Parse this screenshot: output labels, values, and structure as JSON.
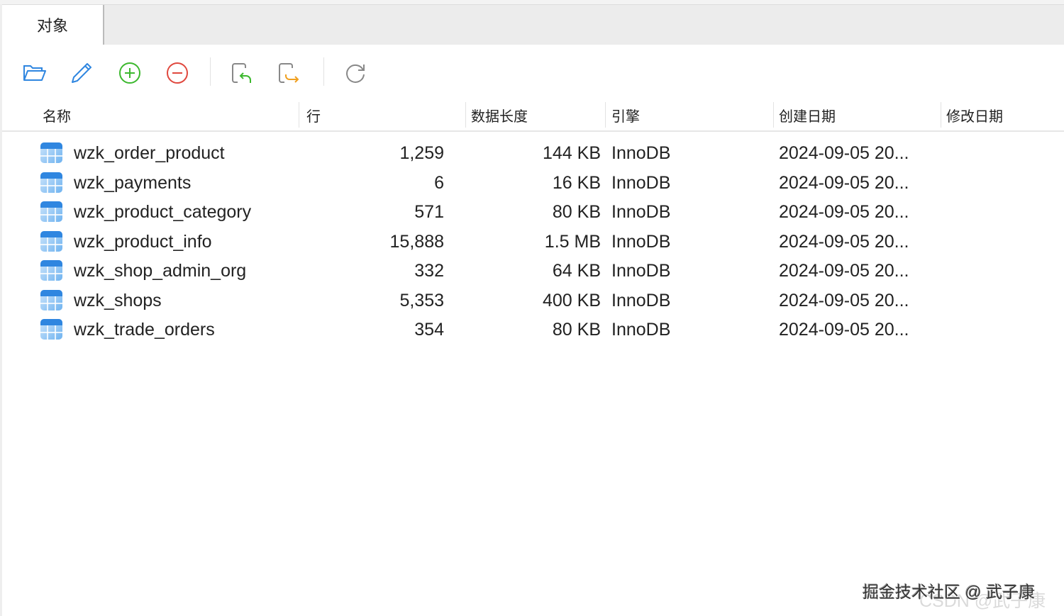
{
  "tab": {
    "label": "对象"
  },
  "toolbar": {
    "buttons": [
      {
        "name": "open-table",
        "icon": "folder-open-icon"
      },
      {
        "name": "design-table",
        "icon": "pencil-icon"
      },
      {
        "name": "new-table",
        "icon": "plus-circle-icon"
      },
      {
        "name": "delete-table",
        "icon": "minus-circle-icon"
      },
      {
        "name": "import",
        "icon": "import-icon"
      },
      {
        "name": "export",
        "icon": "export-icon"
      },
      {
        "name": "refresh",
        "icon": "refresh-icon"
      }
    ],
    "colors": {
      "blue": "#2f86e0",
      "green": "#3cb82e",
      "red": "#e0483e",
      "orange": "#f0a020",
      "gray": "#888888"
    }
  },
  "columns": [
    "名称",
    "行",
    "数据长度",
    "引擎",
    "创建日期",
    "修改日期"
  ],
  "rows": [
    {
      "name": "wzk_order_product",
      "rows": "1,259",
      "size": "144 KB",
      "engine": "InnoDB",
      "created": "2024-09-05 20...",
      "modified": ""
    },
    {
      "name": "wzk_payments",
      "rows": "6",
      "size": "16 KB",
      "engine": "InnoDB",
      "created": "2024-09-05 20...",
      "modified": ""
    },
    {
      "name": "wzk_product_category",
      "rows": "571",
      "size": "80 KB",
      "engine": "InnoDB",
      "created": "2024-09-05 20...",
      "modified": ""
    },
    {
      "name": "wzk_product_info",
      "rows": "15,888",
      "size": "1.5 MB",
      "engine": "InnoDB",
      "created": "2024-09-05 20...",
      "modified": ""
    },
    {
      "name": "wzk_shop_admin_org",
      "rows": "332",
      "size": "64 KB",
      "engine": "InnoDB",
      "created": "2024-09-05 20...",
      "modified": ""
    },
    {
      "name": "wzk_shops",
      "rows": "5,353",
      "size": "400 KB",
      "engine": "InnoDB",
      "created": "2024-09-05 20...",
      "modified": ""
    },
    {
      "name": "wzk_trade_orders",
      "rows": "354",
      "size": "80 KB",
      "engine": "InnoDB",
      "created": "2024-09-05 20...",
      "modified": ""
    }
  ],
  "watermarks": [
    "掘金技术社区 @ 武子康",
    "CSDN @武子康"
  ]
}
